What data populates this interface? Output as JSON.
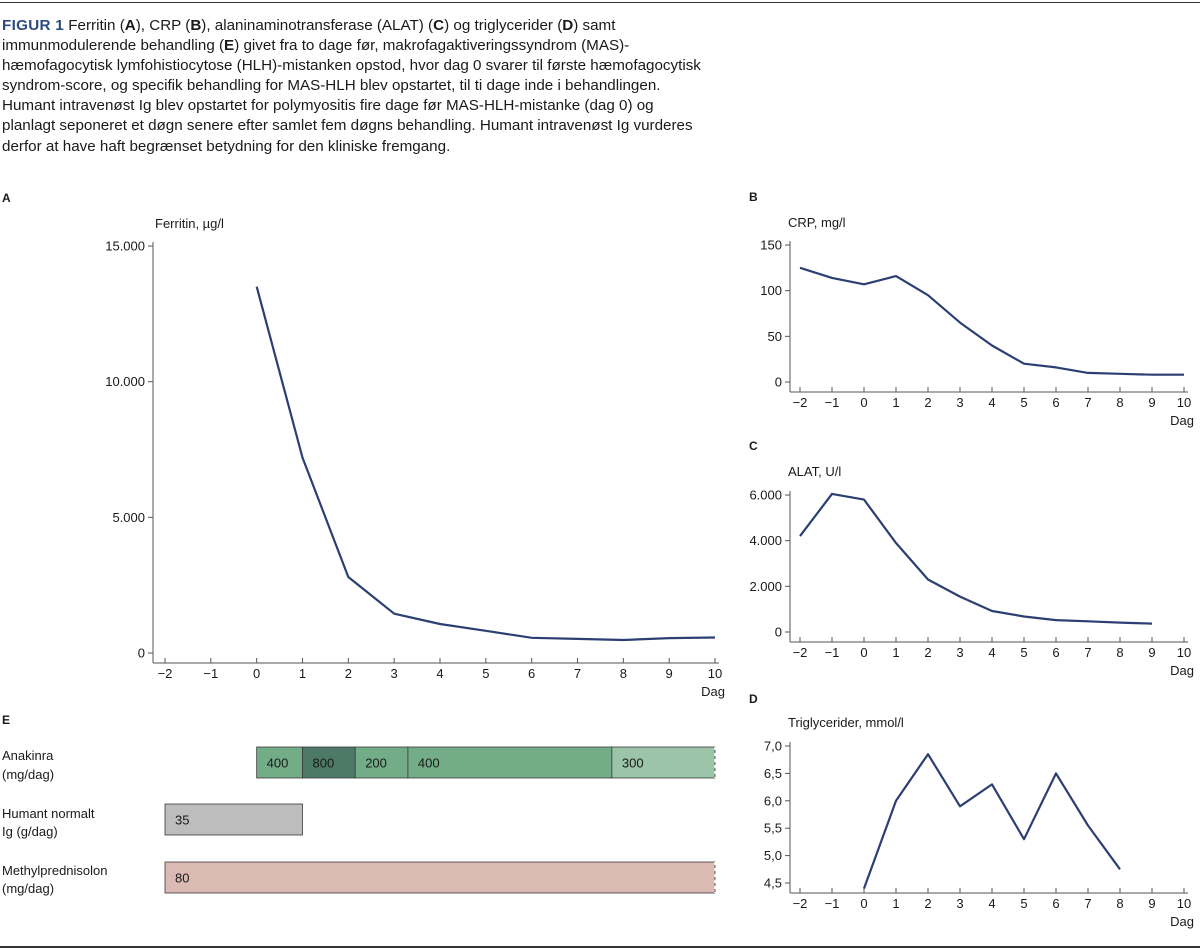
{
  "caption": {
    "figure_label": "FIGUR 1",
    "segments": [
      {
        "t": " Ferritin (",
        "b": false
      },
      {
        "t": "A",
        "b": true
      },
      {
        "t": "), CRP (",
        "b": false
      },
      {
        "t": "B",
        "b": true
      },
      {
        "t": "), alaninaminotransferase (ALAT) (",
        "b": false
      },
      {
        "t": "C",
        "b": true
      },
      {
        "t": ") og triglycerider (",
        "b": false
      },
      {
        "t": "D",
        "b": true
      },
      {
        "t": ") samt immunmodulerende behandling (",
        "b": false
      },
      {
        "t": "E",
        "b": true
      },
      {
        "t": ") givet fra to dage før, makrofagaktiveringssyndrom (MAS)-hæmofagocytisk lymfohistiocytose (HLH)-mistanken opstod, hvor dag 0 svarer til første hæmofagocytisk syndrom-score, og specifik behandling for MAS-HLH blev opstartet, til ti dage inde i behandlingen. Humant intravenøst Ig blev opstartet for polymyositis fire dage før MAS-HLH-mistanke (dag 0) og planlagt seponeret et døgn senere efter samlet fem døgns behandling. Humant intravenøst Ig vurderes derfor at have haft begrænset betydning for den kliniske fremgang.",
        "b": false
      }
    ]
  },
  "colors": {
    "series": "#2b3f73",
    "caption_label": "#2c4a7c",
    "anakinra_light": "#72ad88",
    "anakinra_dark": "#4d7a68",
    "anakinra_fade": "#9cc4a8",
    "ig": "#bdbdbd",
    "methylpred": "#dcbab4"
  },
  "chart_data": [
    {
      "panel": "A",
      "type": "line",
      "ylabel": "Ferritin, µg/l",
      "xlabel": "Dag",
      "x_ticks": [
        -2,
        -1,
        0,
        1,
        2,
        3,
        4,
        5,
        6,
        7,
        8,
        9,
        10
      ],
      "x_tick_labels": [
        "−2",
        "−1",
        "0",
        "1",
        "2",
        "3",
        "4",
        "5",
        "6",
        "7",
        "8",
        "9",
        "10"
      ],
      "ylim": [
        0,
        15000
      ],
      "y_ticks": [
        0,
        5000,
        10000,
        15000
      ],
      "y_tick_labels": [
        "0",
        "5.000",
        "10.000",
        "15.000"
      ],
      "x": [
        0,
        1,
        2,
        3,
        4,
        5,
        6,
        7,
        8,
        9,
        10
      ],
      "y": [
        13500,
        7200,
        2800,
        1450,
        1070,
        820,
        560,
        520,
        480,
        550,
        570
      ]
    },
    {
      "panel": "B",
      "type": "line",
      "ylabel": "CRP, mg/l",
      "xlabel": "Dag",
      "x_ticks": [
        -2,
        -1,
        0,
        1,
        2,
        3,
        4,
        5,
        6,
        7,
        8,
        9,
        10
      ],
      "x_tick_labels": [
        "−2",
        "−1",
        "0",
        "1",
        "2",
        "3",
        "4",
        "5",
        "6",
        "7",
        "8",
        "9",
        "10"
      ],
      "ylim": [
        0,
        150
      ],
      "y_ticks": [
        0,
        50,
        100,
        150
      ],
      "y_tick_labels": [
        "0",
        "50",
        "100",
        "150"
      ],
      "x": [
        -2,
        -1,
        0,
        1,
        2,
        3,
        4,
        5,
        6,
        7,
        8,
        9,
        10
      ],
      "y": [
        125,
        114,
        107,
        116,
        95,
        65,
        40,
        20,
        16,
        10,
        9,
        8,
        8
      ]
    },
    {
      "panel": "C",
      "type": "line",
      "ylabel": "ALAT, U/l",
      "xlabel": "Dag",
      "x_ticks": [
        -2,
        -1,
        0,
        1,
        2,
        3,
        4,
        5,
        6,
        7,
        8,
        9,
        10
      ],
      "x_tick_labels": [
        "−2",
        "−1",
        "0",
        "1",
        "2",
        "3",
        "4",
        "5",
        "6",
        "7",
        "8",
        "9",
        "10"
      ],
      "ylim": [
        0,
        6000
      ],
      "y_ticks": [
        0,
        2000,
        4000,
        6000
      ],
      "y_tick_labels": [
        "0",
        "2.000",
        "4.000",
        "6.000"
      ],
      "x": [
        -2,
        -1,
        0,
        1,
        2,
        3,
        4,
        5,
        6,
        7,
        8,
        9
      ],
      "y": [
        4200,
        6050,
        5800,
        3900,
        2300,
        1550,
        920,
        680,
        520,
        470,
        410,
        370
      ]
    },
    {
      "panel": "D",
      "type": "line",
      "ylabel": "Triglycerider, mmol/l",
      "xlabel": "Dag",
      "x_ticks": [
        -2,
        -1,
        0,
        1,
        2,
        3,
        4,
        5,
        6,
        7,
        8,
        9,
        10
      ],
      "x_tick_labels": [
        "−2",
        "−1",
        "0",
        "1",
        "2",
        "3",
        "4",
        "5",
        "6",
        "7",
        "8",
        "9",
        "10"
      ],
      "ylim": [
        4.5,
        7.0
      ],
      "y_ticks": [
        4.5,
        5.0,
        5.5,
        6.0,
        6.5,
        7.0
      ],
      "y_tick_labels": [
        "4,5",
        "5,0",
        "5,5",
        "6,0",
        "6,5",
        "7,0"
      ],
      "x": [
        0,
        1,
        2,
        3,
        4,
        5,
        6,
        7,
        8
      ],
      "y": [
        4.4,
        6.0,
        6.85,
        5.9,
        6.3,
        5.3,
        6.5,
        5.55,
        4.75
      ]
    },
    {
      "panel": "E",
      "type": "bar",
      "x_range": [
        -2,
        10
      ],
      "rows": [
        {
          "label_lines": [
            "Anakinra",
            "(mg/dag)"
          ],
          "segments": [
            {
              "start": 0,
              "end": 1,
              "value": "400",
              "color_key": "anakinra_light",
              "text_color": "#1a1a1a"
            },
            {
              "start": 1,
              "end": 2.15,
              "value": "800",
              "color_key": "anakinra_dark",
              "text_color": "#ffffff"
            },
            {
              "start": 2.15,
              "end": 3.3,
              "value": "200",
              "color_key": "anakinra_light",
              "text_color": "#1a1a1a"
            },
            {
              "start": 3.3,
              "end": 7.75,
              "value": "400",
              "color_key": "anakinra_light",
              "text_color": "#1a1a1a"
            },
            {
              "start": 7.75,
              "end": 10,
              "value": "300",
              "color_key": "anakinra_fade",
              "text_color": "#1a1a1a",
              "open_end": true
            }
          ]
        },
        {
          "label_lines": [
            "Humant normalt",
            "Ig (g/dag)"
          ],
          "segments": [
            {
              "start": -2,
              "end": 1,
              "value": "35",
              "color_key": "ig",
              "text_color": "#1a1a1a"
            }
          ]
        },
        {
          "label_lines": [
            "Methylprednisolon",
            "(mg/dag)"
          ],
          "segments": [
            {
              "start": -2,
              "end": 10,
              "value": "80",
              "color_key": "methylpred",
              "text_color": "#1a1a1a",
              "open_end": true
            }
          ]
        }
      ]
    }
  ]
}
